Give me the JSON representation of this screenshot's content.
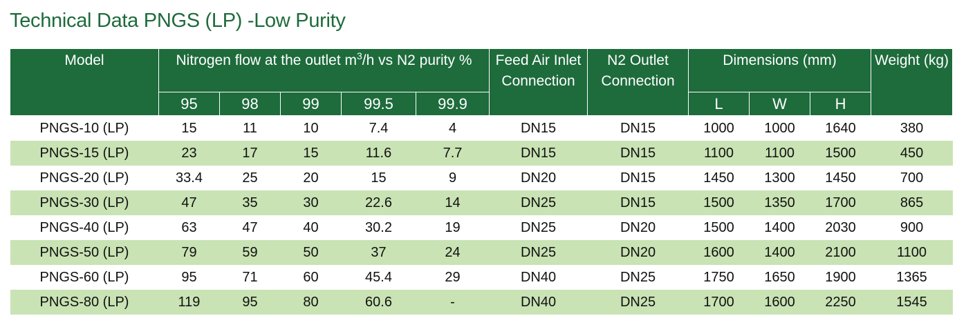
{
  "title": "Technical Data PNGS (LP) -Low Purity",
  "headers": {
    "model": "Model",
    "flow_pre": "Nitrogen flow at the outlet m",
    "flow_sup": "3",
    "flow_post": "/h vs N2 purity %",
    "feed_air": "Feed Air Inlet Connection",
    "n2_outlet": "N2 Outlet Connection",
    "dimensions": "Dimensions (mm)",
    "weight": "Weight (kg)",
    "purities": [
      "95",
      "98",
      "99",
      "99.5",
      "99.9"
    ],
    "dims": [
      "L",
      "W",
      "H"
    ]
  },
  "rows": [
    {
      "model": "PNGS-10 (LP)",
      "p95": "15",
      "p98": "11",
      "p99": "10",
      "p995": "7.4",
      "p999": "4",
      "feed": "DN15",
      "outlet": "DN15",
      "L": "1000",
      "W": "1000",
      "H": "1640",
      "weight": "380"
    },
    {
      "model": "PNGS-15 (LP)",
      "p95": "23",
      "p98": "17",
      "p99": "15",
      "p995": "11.6",
      "p999": "7.7",
      "feed": "DN15",
      "outlet": "DN15",
      "L": "1100",
      "W": "1100",
      "H": "1500",
      "weight": "450"
    },
    {
      "model": "PNGS-20 (LP)",
      "p95": "33.4",
      "p98": "25",
      "p99": "20",
      "p995": "15",
      "p999": "9",
      "feed": "DN20",
      "outlet": "DN15",
      "L": "1450",
      "W": "1300",
      "H": "1450",
      "weight": "700"
    },
    {
      "model": "PNGS-30 (LP)",
      "p95": "47",
      "p98": "35",
      "p99": "30",
      "p995": "22.6",
      "p999": "14",
      "feed": "DN25",
      "outlet": "DN15",
      "L": "1500",
      "W": "1350",
      "H": "1700",
      "weight": "865"
    },
    {
      "model": "PNGS-40 (LP)",
      "p95": "63",
      "p98": "47",
      "p99": "40",
      "p995": "30.2",
      "p999": "19",
      "feed": "DN25",
      "outlet": "DN20",
      "L": "1500",
      "W": "1400",
      "H": "2030",
      "weight": "900"
    },
    {
      "model": "PNGS-50 (LP)",
      "p95": "79",
      "p98": "59",
      "p99": "50",
      "p995": "37",
      "p999": "24",
      "feed": "DN25",
      "outlet": "DN20",
      "L": "1600",
      "W": "1400",
      "H": "2100",
      "weight": "1100"
    },
    {
      "model": "PNGS-60 (LP)",
      "p95": "95",
      "p98": "71",
      "p99": "60",
      "p995": "45.4",
      "p999": "29",
      "feed": "DN40",
      "outlet": "DN25",
      "L": "1750",
      "W": "1650",
      "H": "1900",
      "weight": "1365"
    },
    {
      "model": "PNGS-80 (LP)",
      "p95": "119",
      "p98": "95",
      "p99": "80",
      "p995": "60.6",
      "p999": "-",
      "feed": "DN40",
      "outlet": "DN25",
      "L": "1700",
      "W": "1600",
      "H": "2250",
      "weight": "1545"
    }
  ]
}
